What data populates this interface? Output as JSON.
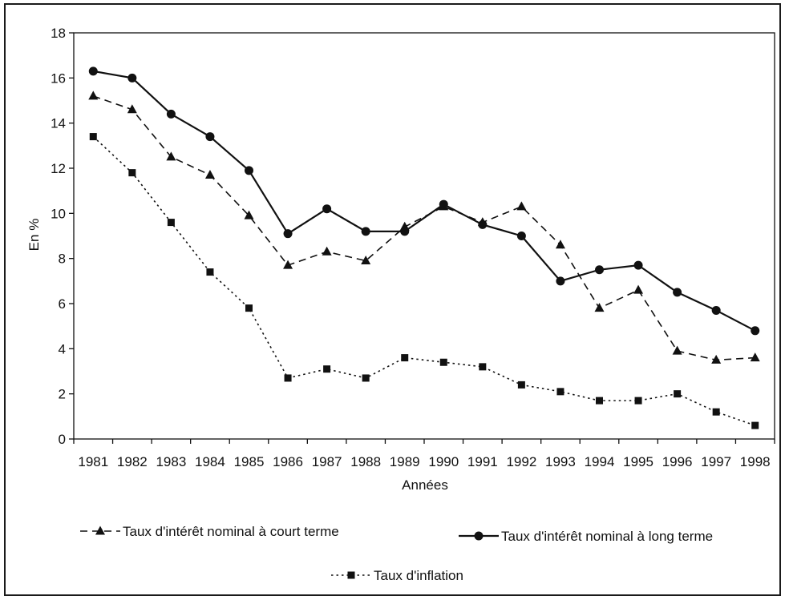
{
  "chart_data": {
    "type": "line",
    "title": "",
    "xlabel": "Années",
    "ylabel": "En %",
    "ylim": [
      0,
      18
    ],
    "yticks": [
      0,
      2,
      4,
      6,
      8,
      10,
      12,
      14,
      16,
      18
    ],
    "grid": false,
    "legend_position": "bottom",
    "categories": [
      "1981",
      "1982",
      "1983",
      "1984",
      "1985",
      "1986",
      "1987",
      "1988",
      "1989",
      "1990",
      "1991",
      "1992",
      "1993",
      "1994",
      "1995",
      "1996",
      "1997",
      "1998"
    ],
    "series": [
      {
        "name": "Taux d'intérêt nominal à court terme",
        "marker": "triangle",
        "line_style": "dashed",
        "color": "#111111",
        "values": [
          15.2,
          14.6,
          12.5,
          11.7,
          9.9,
          7.7,
          8.3,
          7.9,
          9.4,
          10.3,
          9.6,
          10.3,
          8.6,
          5.8,
          6.6,
          3.9,
          3.5,
          3.6
        ]
      },
      {
        "name": "Taux d'intérêt nominal à long terme",
        "marker": "circle",
        "line_style": "solid",
        "color": "#111111",
        "values": [
          16.3,
          16.0,
          14.4,
          13.4,
          11.9,
          9.1,
          10.2,
          9.2,
          9.2,
          10.4,
          9.5,
          9.0,
          7.0,
          7.5,
          7.7,
          6.5,
          5.7,
          4.8
        ]
      },
      {
        "name": "Taux d'inflation",
        "marker": "square",
        "line_style": "dotted",
        "color": "#111111",
        "values": [
          13.4,
          11.8,
          9.6,
          7.4,
          5.8,
          2.7,
          3.1,
          2.7,
          3.6,
          3.4,
          3.2,
          2.4,
          2.1,
          1.7,
          1.7,
          2.0,
          1.2,
          0.6
        ]
      }
    ]
  }
}
